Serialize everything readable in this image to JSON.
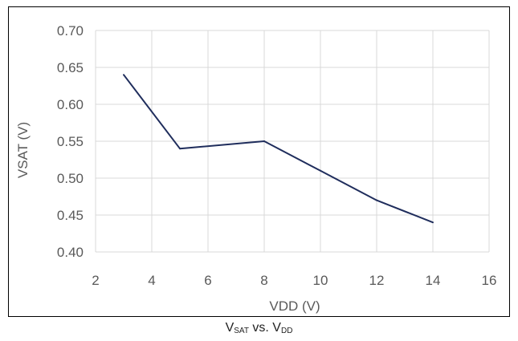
{
  "caption": {
    "v1": "V",
    "sub1": "SAT",
    "mid": " vs. ",
    "v2": "V",
    "sub2": "DD"
  },
  "chart_data": {
    "type": "line",
    "xlabel": "VDD (V)",
    "ylabel": "VSAT (V)",
    "xlim": [
      2,
      16
    ],
    "ylim": [
      0.4,
      0.7
    ],
    "xticks": [
      "2",
      "4",
      "6",
      "8",
      "10",
      "12",
      "14",
      "16"
    ],
    "yticks": [
      "0.40",
      "0.45",
      "0.50",
      "0.55",
      "0.60",
      "0.65",
      "0.70"
    ],
    "grid": true,
    "series": [
      {
        "x": [
          3,
          5,
          8,
          10,
          12,
          14
        ],
        "y": [
          0.64,
          0.54,
          0.55,
          0.51,
          0.47,
          0.44
        ]
      }
    ],
    "colors": {
      "line": "#1f2d5c",
      "grid": "#d9d9d9",
      "text": "#595959"
    }
  }
}
